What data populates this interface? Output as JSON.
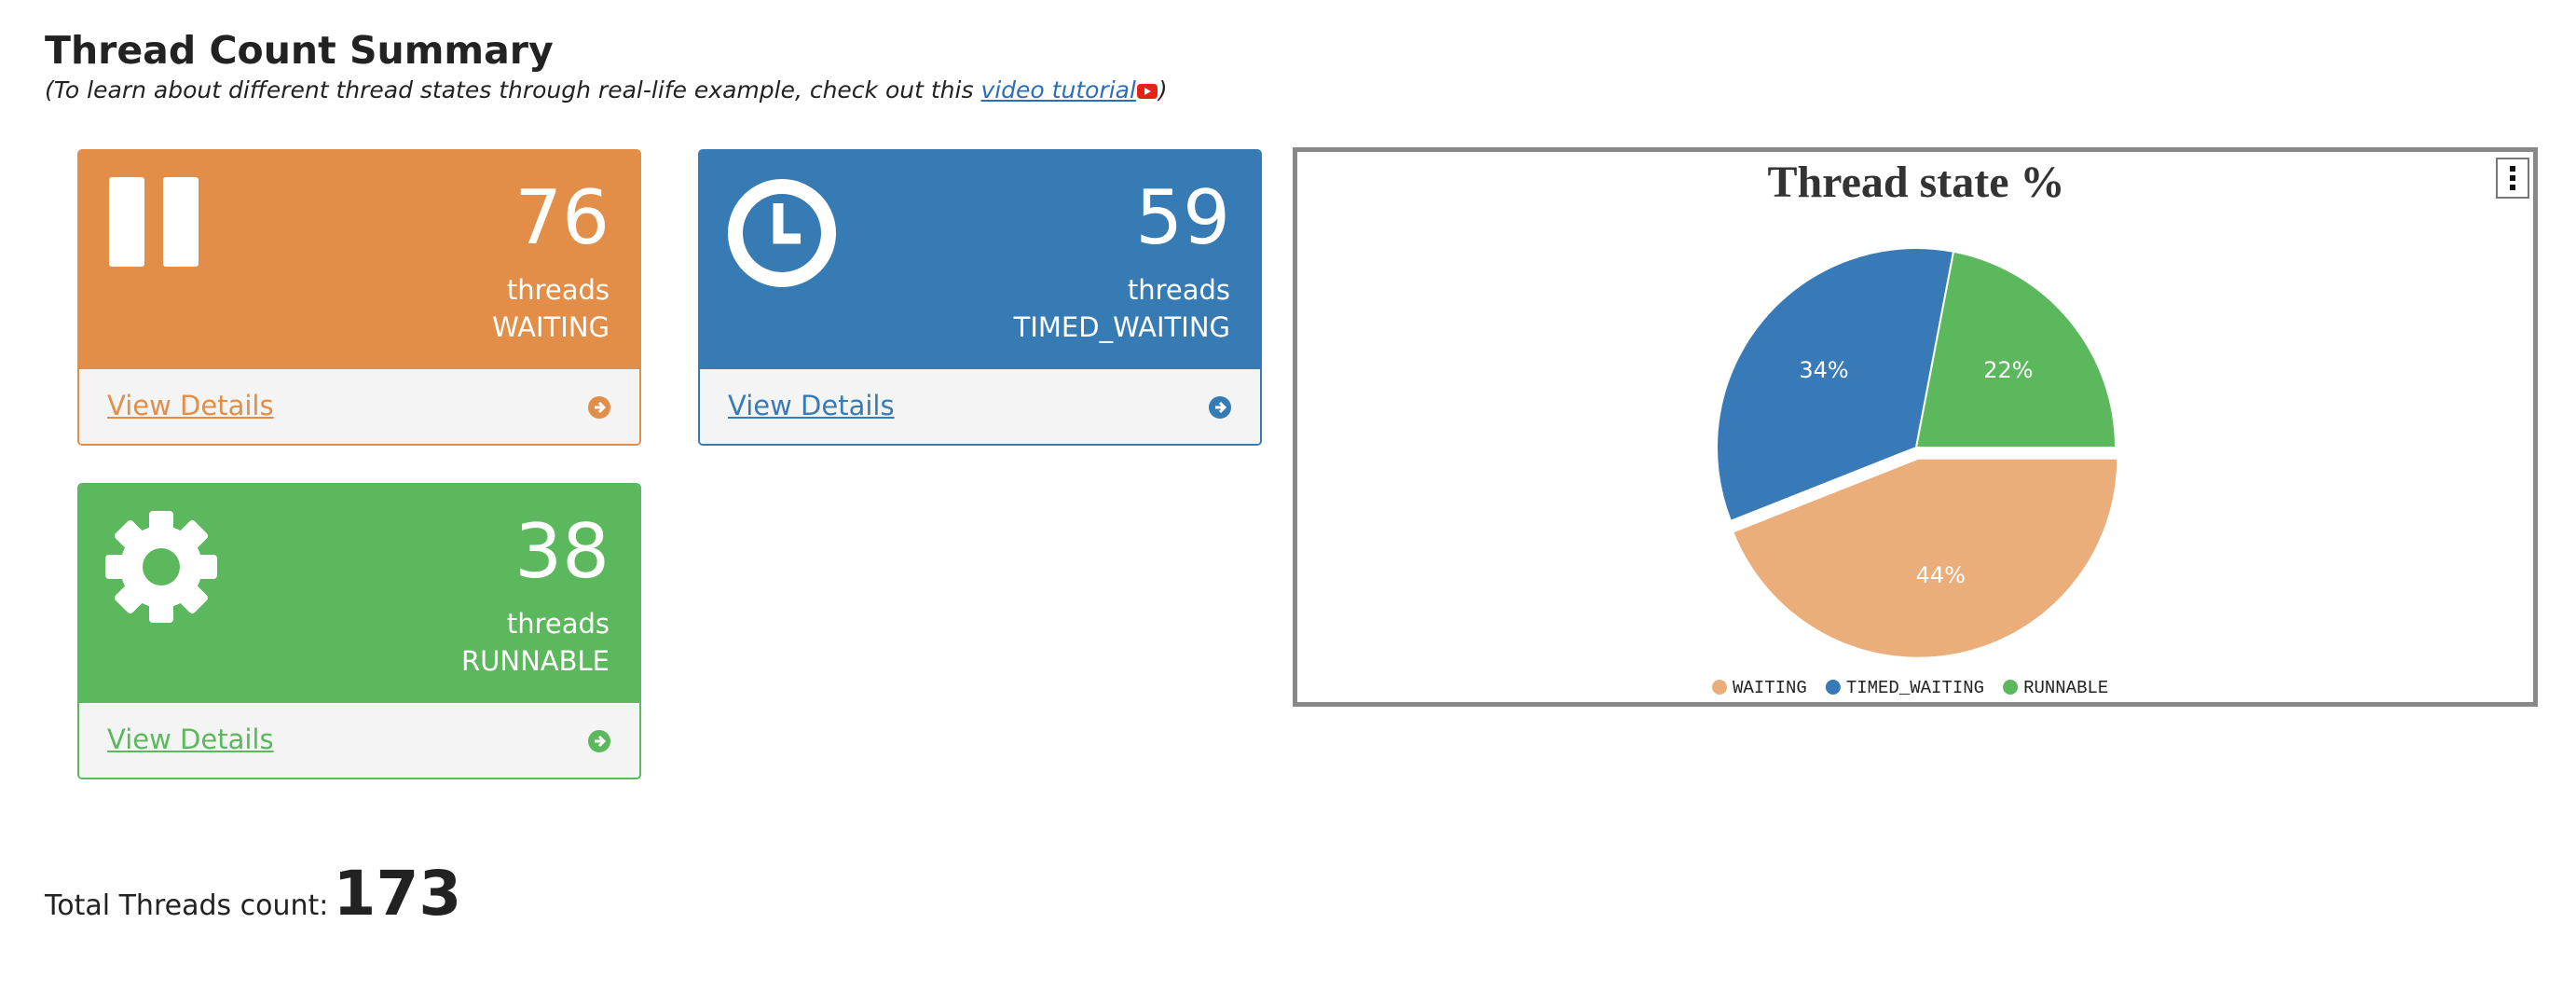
{
  "header": {
    "title": "Thread Count Summary",
    "subtitle_before": "(To learn about different thread states through real-life example, check out this ",
    "link": "video tutorial",
    "subtitle_after": ")"
  },
  "cards": [
    {
      "count": 76,
      "unit": "threads",
      "state": "WAITING",
      "link": "View Details",
      "color": "#e28e48"
    },
    {
      "count": 59,
      "unit": "threads",
      "state": "TIMED_WAITING",
      "link": "View Details",
      "color": "#377bb5"
    },
    {
      "count": 38,
      "unit": "threads",
      "state": "RUNNABLE",
      "link": "View Details",
      "color": "#5cb85c"
    }
  ],
  "chart_data": {
    "type": "pie",
    "title": "Thread state %",
    "categories": [
      "WAITING",
      "TIMED_WAITING",
      "RUNNABLE"
    ],
    "values": [
      44,
      34,
      22
    ],
    "value_labels": [
      "44%",
      "34%",
      "22%"
    ],
    "colors": [
      "#ebad7a",
      "#377ab7",
      "#5cb85c"
    ]
  },
  "total": {
    "label": "Total Threads count:",
    "value": 173
  }
}
